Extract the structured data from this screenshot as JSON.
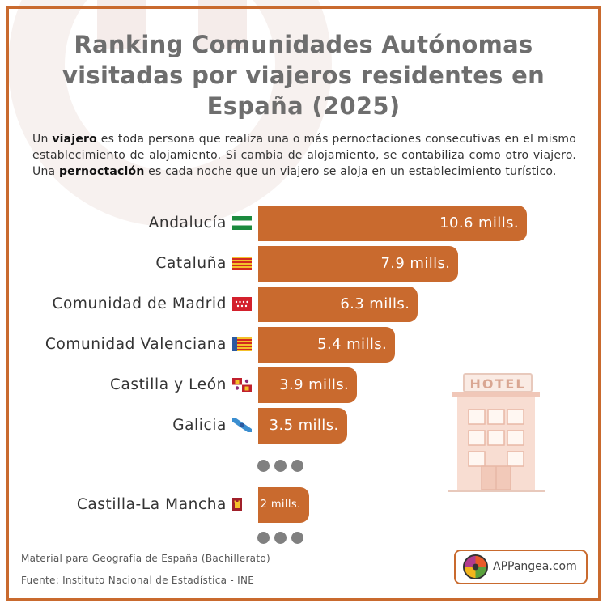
{
  "header": {
    "title_lines": [
      "Ranking Comunidades Autónomas",
      "visitadas por viajeros residentes en",
      "España (2025)"
    ]
  },
  "intro": {
    "p1": "Un ",
    "b1": "viajero",
    "p2": " es toda persona que realiza una o más pernoctaciones consecutivas en el mismo establecimiento de alojamiento. Si cambia de alojamiento, se contabiliza como otro viajero. Una ",
    "b2": "pernoctación",
    "p3": " es cada noche que un viajero se aloja en un establecimiento turístico."
  },
  "chart_data": {
    "type": "bar",
    "orientation": "horizontal",
    "categories": [
      "Andalucía",
      "Cataluña",
      "Comunidad de Madrid",
      "Comunidad Valenciana",
      "Castilla y León",
      "Galicia",
      "Castilla-La Mancha"
    ],
    "values": [
      10.6,
      7.9,
      6.3,
      5.4,
      3.9,
      3.5,
      2
    ],
    "value_labels": [
      "10.6 mills.",
      "7.9 mills.",
      "6.3 mills.",
      "5.4 mills.",
      "3.9 mills.",
      "3.5 mills.",
      "2 mills."
    ],
    "bar_color": "#c96a2e",
    "xlim": [
      0,
      10.6
    ],
    "grid": false,
    "ellipsis_after_index": 5
  },
  "flags": [
    "andalucia-flag-icon",
    "cataluna-flag-icon",
    "madrid-flag-icon",
    "valencia-flag-icon",
    "castilla-leon-flag-icon",
    "galicia-flag-icon",
    "castilla-la-mancha-flag-icon"
  ],
  "illustration": {
    "hotel_sign": "HOTEL"
  },
  "footer": {
    "material": "Material para Geografía de España (Bachillerato)",
    "source": "Fuente: Instituto Nacional de Estadística - INE",
    "brand": "APPangea.com"
  },
  "colors": {
    "accent": "#c96a2e",
    "title": "#6e6e6e",
    "dots": "#808080"
  }
}
